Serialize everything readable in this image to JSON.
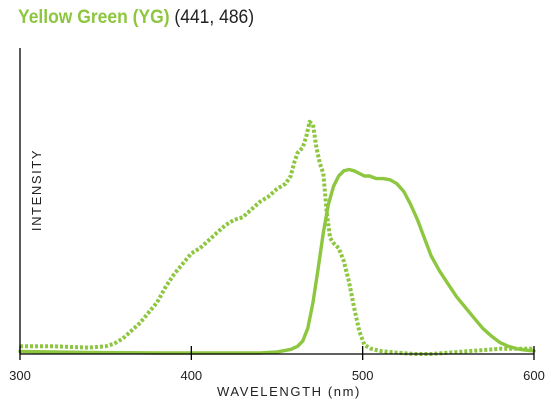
{
  "chart_data": {
    "type": "line",
    "title": {
      "name": "Yellow Green (YG)",
      "wavelengths": "(441, 486)"
    },
    "xlabel": "WAVELENGTH (nm)",
    "ylabel": "INTENSITY",
    "xlim": [
      300,
      600
    ],
    "ylim": [
      0,
      1
    ],
    "x_ticks": [
      300,
      400,
      500,
      600
    ],
    "grid": false,
    "colors": {
      "series": "#8dc63f",
      "axis": "#000000"
    },
    "series": [
      {
        "style": "dotted",
        "points": [
          [
            300,
            0.03
          ],
          [
            310,
            0.03
          ],
          [
            320,
            0.03
          ],
          [
            330,
            0.027
          ],
          [
            340,
            0.025
          ],
          [
            350,
            0.03
          ],
          [
            355,
            0.04
          ],
          [
            360,
            0.06
          ],
          [
            365,
            0.09
          ],
          [
            370,
            0.12
          ],
          [
            375,
            0.16
          ],
          [
            380,
            0.2
          ],
          [
            385,
            0.26
          ],
          [
            390,
            0.31
          ],
          [
            395,
            0.35
          ],
          [
            400,
            0.39
          ],
          [
            405,
            0.41
          ],
          [
            410,
            0.44
          ],
          [
            415,
            0.47
          ],
          [
            420,
            0.5
          ],
          [
            425,
            0.52
          ],
          [
            430,
            0.53
          ],
          [
            435,
            0.56
          ],
          [
            440,
            0.59
          ],
          [
            445,
            0.61
          ],
          [
            450,
            0.64
          ],
          [
            455,
            0.66
          ],
          [
            458,
            0.69
          ],
          [
            460,
            0.74
          ],
          [
            462,
            0.78
          ],
          [
            465,
            0.8
          ],
          [
            467,
            0.84
          ],
          [
            469,
            0.9
          ],
          [
            471,
            0.89
          ],
          [
            473,
            0.8
          ],
          [
            475,
            0.74
          ],
          [
            477,
            0.7
          ],
          [
            479,
            0.55
          ],
          [
            481,
            0.45
          ],
          [
            483,
            0.43
          ],
          [
            486,
            0.41
          ],
          [
            489,
            0.36
          ],
          [
            492,
            0.28
          ],
          [
            495,
            0.18
          ],
          [
            498,
            0.09
          ],
          [
            501,
            0.035
          ],
          [
            505,
            0.02
          ],
          [
            510,
            0.012
          ],
          [
            520,
            0.005
          ],
          [
            530,
            0.0
          ],
          [
            540,
            0.0
          ],
          [
            550,
            0.005
          ],
          [
            560,
            0.01
          ],
          [
            570,
            0.015
          ],
          [
            580,
            0.02
          ],
          [
            590,
            0.02
          ],
          [
            600,
            0.02
          ]
        ]
      },
      {
        "style": "solid",
        "points": [
          [
            300,
            0.01
          ],
          [
            320,
            0.008
          ],
          [
            340,
            0.006
          ],
          [
            360,
            0.005
          ],
          [
            380,
            0.004
          ],
          [
            400,
            0.004
          ],
          [
            420,
            0.004
          ],
          [
            440,
            0.004
          ],
          [
            450,
            0.008
          ],
          [
            458,
            0.018
          ],
          [
            462,
            0.03
          ],
          [
            465,
            0.05
          ],
          [
            468,
            0.1
          ],
          [
            471,
            0.2
          ],
          [
            474,
            0.33
          ],
          [
            477,
            0.47
          ],
          [
            480,
            0.58
          ],
          [
            483,
            0.65
          ],
          [
            486,
            0.69
          ],
          [
            489,
            0.71
          ],
          [
            492,
            0.715
          ],
          [
            495,
            0.71
          ],
          [
            498,
            0.7
          ],
          [
            501,
            0.69
          ],
          [
            504,
            0.69
          ],
          [
            508,
            0.68
          ],
          [
            512,
            0.68
          ],
          [
            516,
            0.675
          ],
          [
            520,
            0.66
          ],
          [
            524,
            0.63
          ],
          [
            528,
            0.58
          ],
          [
            532,
            0.52
          ],
          [
            536,
            0.45
          ],
          [
            540,
            0.38
          ],
          [
            545,
            0.32
          ],
          [
            550,
            0.27
          ],
          [
            555,
            0.22
          ],
          [
            560,
            0.18
          ],
          [
            565,
            0.14
          ],
          [
            570,
            0.1
          ],
          [
            575,
            0.07
          ],
          [
            580,
            0.045
          ],
          [
            585,
            0.03
          ],
          [
            590,
            0.02
          ],
          [
            595,
            0.015
          ],
          [
            600,
            0.012
          ]
        ]
      }
    ]
  }
}
